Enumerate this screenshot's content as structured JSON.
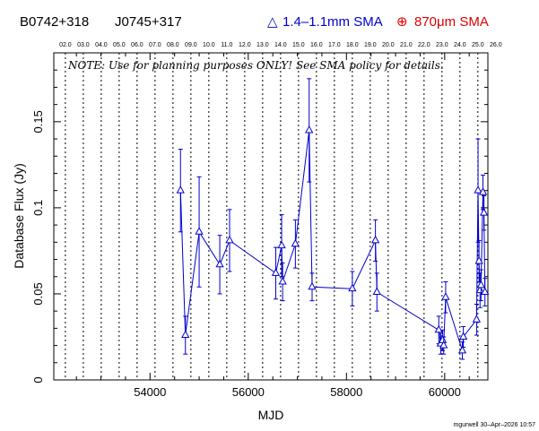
{
  "header": {
    "source_name": "B0742+318",
    "alt_name": "J0745+317",
    "legend_1mm_symbol": "△",
    "legend_1mm_label": "1.4–1.1mm SMA",
    "legend_870_symbol": "⊕",
    "legend_870_label": "870μm SMA"
  },
  "footer": {
    "credit": "mgurwell 30–Apr–2026 10:57"
  },
  "colors": {
    "series_1mm": "#0000cc",
    "series_870": "#dd0000",
    "axis": "#000000",
    "background": "#ffffff"
  },
  "chart_data": {
    "type": "line",
    "title": "",
    "note": "NOTE: Use for planning purposes ONLY! See SMA policy for details.",
    "xlabel": "MJD",
    "ylabel": "Database Flux (Jy)",
    "xlim": [
      52040,
      60880
    ],
    "ylim": [
      0,
      0.19
    ],
    "x_ticks": [
      54000,
      56000,
      58000,
      60000
    ],
    "x_tick_labels": [
      "54000",
      "56000",
      "58000",
      "60000"
    ],
    "y_ticks": [
      0,
      0.05,
      0.1,
      0.15
    ],
    "y_tick_labels": [
      "0",
      "0.05",
      "0.1",
      "0.15"
    ],
    "top_axis_label_positions": [
      2002,
      2003,
      2004,
      2005,
      2006,
      2007,
      2008,
      2009,
      2010,
      2011,
      2012,
      2013,
      2014,
      2015,
      2016,
      2017,
      2018,
      2019,
      2020,
      2021,
      2022,
      2023,
      2024,
      2025,
      2026
    ],
    "top_axis_labels": [
      "02.0",
      "03.0",
      "04.0",
      "05.0",
      "06.0",
      "07.0",
      "08.0",
      "09.0",
      "10.0",
      "11.0",
      "12.0",
      "13.0",
      "14.0",
      "15.0",
      "16.0",
      "17.0",
      "18.0",
      "19.0",
      "20.0",
      "21.0",
      "22.0",
      "23.0",
      "24.0",
      "25.0",
      "26.0"
    ],
    "year_grid": true,
    "series": [
      {
        "name": "1.4–1.1mm SMA",
        "marker": "triangle",
        "points": [
          {
            "x": 54620,
            "y": 0.11,
            "err": 0.024
          },
          {
            "x": 54720,
            "y": 0.026,
            "err": 0.011
          },
          {
            "x": 55000,
            "y": 0.086,
            "err": 0.032
          },
          {
            "x": 55420,
            "y": 0.067,
            "err": 0.017
          },
          {
            "x": 55620,
            "y": 0.081,
            "err": 0.018
          },
          {
            "x": 56560,
            "y": 0.062,
            "err": 0.015
          },
          {
            "x": 56680,
            "y": 0.078,
            "err": 0.018
          },
          {
            "x": 56700,
            "y": 0.057,
            "err": 0.011
          },
          {
            "x": 56960,
            "y": 0.079,
            "err": 0.014
          },
          {
            "x": 57240,
            "y": 0.145,
            "err": 0.03
          },
          {
            "x": 57300,
            "y": 0.054,
            "err": 0.008
          },
          {
            "x": 58120,
            "y": 0.053,
            "err": 0.01
          },
          {
            "x": 58590,
            "y": 0.081,
            "err": 0.012
          },
          {
            "x": 58620,
            "y": 0.051,
            "err": 0.011
          },
          {
            "x": 59880,
            "y": 0.029,
            "err": 0.008
          },
          {
            "x": 59920,
            "y": 0.021,
            "err": 0.006
          },
          {
            "x": 59960,
            "y": 0.023,
            "err": 0.006
          },
          {
            "x": 59980,
            "y": 0.02,
            "err": 0.005
          },
          {
            "x": 60020,
            "y": 0.048,
            "err": 0.009
          },
          {
            "x": 60360,
            "y": 0.017,
            "err": 0.005
          },
          {
            "x": 60380,
            "y": 0.025,
            "err": 0.006
          },
          {
            "x": 60650,
            "y": 0.035,
            "err": 0.009
          },
          {
            "x": 60680,
            "y": 0.11,
            "err": 0.03
          },
          {
            "x": 60700,
            "y": 0.069,
            "err": 0.012
          },
          {
            "x": 60720,
            "y": 0.052,
            "err": 0.01
          },
          {
            "x": 60740,
            "y": 0.055,
            "err": 0.009
          },
          {
            "x": 60780,
            "y": 0.109,
            "err": 0.01
          },
          {
            "x": 60800,
            "y": 0.097,
            "err": 0.01
          },
          {
            "x": 60820,
            "y": 0.051,
            "err": 0.008
          }
        ]
      }
    ]
  }
}
